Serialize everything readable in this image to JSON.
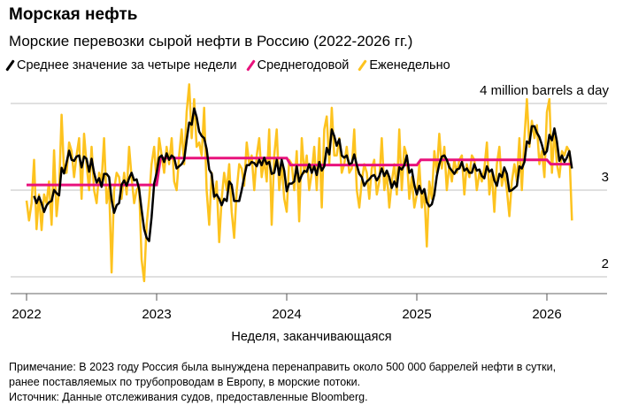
{
  "title": "Морская нефть",
  "subtitle": "Морские перевозки сырой нефти в Россию (2022-2026 гг.)",
  "legend": [
    {
      "label": "Среднее значение за четыре недели",
      "color": "#000000"
    },
    {
      "label": "Среднегодовой",
      "color": "#e8127c"
    },
    {
      "label": "Еженедельно",
      "color": "#fdc31f"
    }
  ],
  "notes": {
    "line1": "Примечание: В 2023 году Россия была вынуждена перенаправить около 500 000 баррелей нефти в сутки,",
    "line2": "ранее поставляемых по трубопроводам в Европу, в морские потоки.",
    "source": "Источник: Данные отслеживания судов, предоставленные Bloomberg."
  },
  "chart_data": {
    "type": "line",
    "xlabel": "Неделя, заканчивающаяся",
    "ylabel": "",
    "y_unit_label": "4 million barrels a day",
    "ylim": [
      1.95,
      4.25
    ],
    "xlim": [
      2021.9,
      2026.45
    ],
    "yticks": [
      {
        "value": 4,
        "label": "4 million barrels a day"
      },
      {
        "value": 3,
        "label": "3"
      },
      {
        "value": 2,
        "label": "2"
      }
    ],
    "xticks": [
      {
        "value": 2022,
        "label": "2022"
      },
      {
        "value": 2023,
        "label": "2023"
      },
      {
        "value": 2024,
        "label": "2024"
      },
      {
        "value": 2025,
        "label": "2025"
      },
      {
        "value": 2026,
        "label": "2026"
      }
    ],
    "grid": true,
    "legend_position": "top",
    "weekly_by_year": {
      "2022": [
        2.88,
        2.65,
        2.85,
        3.35,
        2.55,
        2.95,
        2.54,
        2.95,
        2.85,
        3.1,
        2.6,
        3.46,
        2.7,
        3.0,
        3.87,
        3.2,
        3.2,
        3.55,
        3.45,
        3.15,
        3.4,
        3.6,
        2.9,
        3.65,
        3.3,
        3.0,
        3.5,
        3.0,
        2.85,
        3.2,
        3.1,
        3.6,
        2.85,
        3.05,
        2.05,
        3.0,
        3.2,
        3.15,
        2.9,
        3.2,
        2.95,
        3.5,
        3.15,
        2.85,
        3.0,
        3.05,
        2.2,
        1.95,
        2.6,
        2.9,
        3.3,
        3.5
      ],
      "2023": [
        3.1,
        3.6,
        3.4,
        3.2,
        3.5,
        3.3,
        3.6,
        3.1,
        3.0,
        3.4,
        3.7,
        3.3,
        3.9,
        4.22,
        3.6,
        4.05,
        3.5,
        3.55,
        3.4,
        3.95,
        3.0,
        2.6,
        3.2,
        2.9,
        3.1,
        2.4,
        2.9,
        3.2,
        3.0,
        3.3,
        2.75,
        2.45,
        3.0,
        3.3,
        3.25,
        3.05,
        3.55,
        3.3,
        3.4,
        3.0,
        3.4,
        3.6,
        3.15,
        3.35,
        3.1,
        3.7,
        2.6,
        3.4,
        3.7,
        3.0,
        3.3,
        2.9
      ],
      "2024": [
        2.75,
        3.35,
        3.3,
        3.0,
        3.45,
        2.64,
        3.6,
        3.2,
        3.4,
        3.0,
        3.2,
        3.5,
        3.0,
        3.6,
        2.8,
        3.7,
        3.85,
        3.3,
        3.95,
        3.4,
        3.4,
        3.6,
        3.2,
        3.3,
        3.5,
        3.2,
        3.25,
        3.7,
        3.0,
        2.8,
        3.1,
        3.3,
        3.2,
        2.9,
        3.25,
        3.35,
        2.95,
        3.1,
        3.6,
        3.0,
        3.2,
        2.8,
        3.1,
        3.3,
        2.95,
        3.7,
        3.0,
        3.5,
        3.4,
        2.9,
        3.15,
        2.8
      ],
      "2025": [
        2.95,
        3.3,
        2.8,
        3.0,
        2.35,
        3.1,
        2.9,
        3.45,
        3.2,
        3.65,
        3.25,
        3.5,
        3.0,
        3.3,
        3.1,
        3.35,
        3.2,
        3.35,
        3.4,
        2.95,
        3.3,
        3.15,
        3.4,
        3.35,
        3.0,
        3.2,
        3.1,
        3.25,
        3.55,
        2.95,
        3.2,
        2.75,
        3.3,
        3.5,
        3.05,
        3.2,
        3.0,
        2.7,
        3.1,
        3.3,
        3.1,
        3.6,
        3.0,
        3.6,
        4.05,
        3.5,
        3.8,
        3.6,
        3.75,
        3.3,
        3.45,
        3.15
      ],
      "2026": [
        3.9,
        4.05,
        3.2,
        3.7,
        3.3,
        3.15,
        3.45,
        3.4,
        3.5,
        3.45,
        2.65
      ]
    },
    "annual_average": [
      {
        "year": 2022,
        "value": 3.06
      },
      {
        "year": 2023,
        "value": 3.37
      },
      {
        "year": 2024,
        "value": 3.29
      },
      {
        "year": 2025,
        "value": 3.35
      },
      {
        "year": 2026,
        "value": 3.3
      }
    ]
  }
}
